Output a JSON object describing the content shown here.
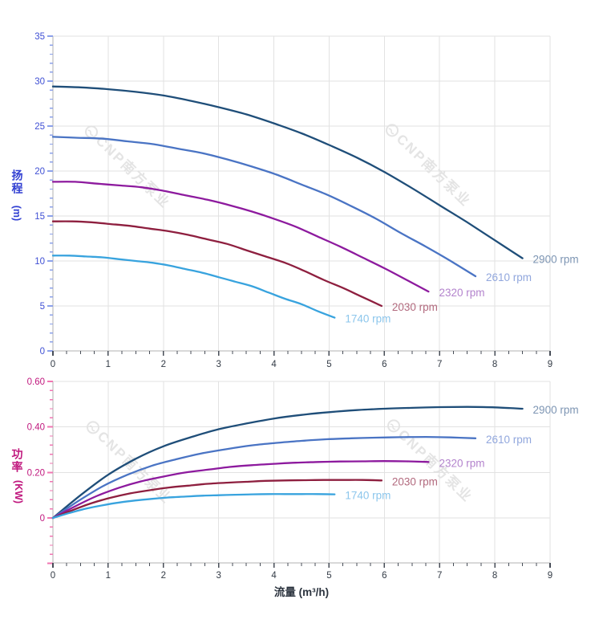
{
  "x_title": "流量 (m³/h)",
  "watermark": {
    "text": "CNP南方泵业",
    "color": "#e4e4e4",
    "logo": "cnp-circle-logo"
  },
  "palette": {
    "gridline": "#e2e2e2",
    "spine": "#d8d8d8",
    "x_tick": "#474d57",
    "x_tick_label": "#333b46",
    "head_axis": "#4050d4",
    "head_tick": "#8ba0ea",
    "power_axis": "#c0187e",
    "power_tick": "#f075b2"
  },
  "chart_data": [
    {
      "type": "line",
      "name": "head-vs-flow",
      "ylabel": "扬程",
      "ylabel_unit": "(m)",
      "xlabel": "流量 (m³/h)",
      "xlim": [
        0,
        9
      ],
      "ylim": [
        0,
        35
      ],
      "grid": true,
      "legend_position": "end-of-curve",
      "x_ticks": [
        0,
        1,
        2,
        3,
        4,
        5,
        6,
        7,
        8,
        9
      ],
      "x_tick_labels": [
        "0",
        "1",
        "2",
        "3",
        "4",
        "5",
        "6",
        "7",
        "8",
        "9"
      ],
      "x_minor_step": 0.25,
      "y_ticks": [
        0,
        5,
        10,
        15,
        20,
        25,
        30,
        35
      ],
      "y_tick_labels": [
        "0",
        "5",
        "10",
        "15",
        "20",
        "25",
        "30",
        "35"
      ],
      "y_minor_step": 1,
      "axis_label_color": "#4050d4",
      "tick_color": "#8ba0ea",
      "series": [
        {
          "name": "2900 rpm",
          "color": "#1f4e79",
          "label_color": "#7d95b3",
          "x": [
            0,
            0.5,
            1,
            1.5,
            2,
            2.5,
            3,
            3.5,
            4,
            4.5,
            5,
            5.5,
            6,
            6.5,
            7,
            7.5,
            8,
            8.5
          ],
          "y": [
            29.4,
            29.3,
            29.1,
            28.8,
            28.4,
            27.8,
            27.1,
            26.3,
            25.3,
            24.2,
            22.9,
            21.5,
            19.9,
            18.1,
            16.2,
            14.3,
            12.3,
            10.3
          ]
        },
        {
          "name": "2610 rpm",
          "color": "#4a74c4",
          "label_color": "#91a7dd",
          "x": [
            0,
            0.45,
            0.9,
            1.35,
            1.8,
            2.25,
            2.7,
            3.15,
            3.6,
            4.05,
            4.5,
            4.95,
            5.4,
            5.85,
            6.3,
            6.75,
            7.2,
            7.65
          ],
          "y": [
            23.8,
            23.7,
            23.6,
            23.3,
            23.0,
            22.5,
            22.0,
            21.3,
            20.5,
            19.6,
            18.5,
            17.4,
            16.1,
            14.7,
            13.1,
            11.6,
            10.0,
            8.3
          ]
        },
        {
          "name": "2320 rpm",
          "color": "#8d1a9e",
          "label_color": "#b383cd",
          "x": [
            0,
            0.4,
            0.8,
            1.2,
            1.6,
            2,
            2.4,
            2.8,
            3.2,
            3.6,
            4,
            4.4,
            4.8,
            5.2,
            5.6,
            6,
            6.4,
            6.8
          ],
          "y": [
            18.8,
            18.8,
            18.6,
            18.4,
            18.2,
            17.8,
            17.3,
            16.8,
            16.2,
            15.5,
            14.7,
            13.8,
            12.7,
            11.6,
            10.4,
            9.2,
            7.9,
            6.6
          ]
        },
        {
          "name": "2030 rpm",
          "color": "#8e1f3f",
          "label_color": "#b26a7e",
          "x": [
            0,
            0.35,
            0.7,
            1.05,
            1.4,
            1.75,
            2.1,
            2.45,
            2.8,
            3.15,
            3.5,
            3.85,
            4.2,
            4.55,
            4.9,
            5.25,
            5.6,
            5.95
          ],
          "y": [
            14.4,
            14.4,
            14.3,
            14.1,
            13.9,
            13.6,
            13.3,
            12.9,
            12.4,
            11.9,
            11.2,
            10.5,
            9.8,
            8.9,
            7.9,
            7.0,
            6.0,
            5.0
          ]
        },
        {
          "name": "1740 rpm",
          "color": "#38a3de",
          "label_color": "#8cc6ec",
          "x": [
            0,
            0.3,
            0.6,
            0.9,
            1.2,
            1.5,
            1.8,
            2.1,
            2.4,
            2.7,
            3,
            3.3,
            3.6,
            3.9,
            4.2,
            4.5,
            4.8,
            5.1
          ],
          "y": [
            10.6,
            10.6,
            10.5,
            10.4,
            10.2,
            10.0,
            9.8,
            9.5,
            9.1,
            8.7,
            8.2,
            7.7,
            7.2,
            6.5,
            5.8,
            5.2,
            4.4,
            3.7
          ]
        }
      ]
    },
    {
      "type": "line",
      "name": "power-vs-flow",
      "ylabel": "功率",
      "ylabel_unit": "(KW)",
      "xlabel": "流量 (m³/h)",
      "xlim": [
        0,
        9
      ],
      "ylim": [
        -0.2,
        0.6
      ],
      "grid": true,
      "legend_position": "end-of-curve",
      "x_ticks": [
        0,
        1,
        2,
        3,
        4,
        5,
        6,
        7,
        8,
        9
      ],
      "x_tick_labels": [
        "0",
        "1",
        "2",
        "3",
        "4",
        "5",
        "6",
        "7",
        "8",
        "9"
      ],
      "x_minor_step": 0.25,
      "y_ticks": [
        -0.2,
        0,
        0.2,
        0.4,
        0.6
      ],
      "y_tick_labels": [
        "",
        "0",
        "0.20",
        "0.40",
        "0.60"
      ],
      "y_minor_step": 0.04,
      "axis_label_color": "#c0187e",
      "tick_color": "#f075b2",
      "series": [
        {
          "name": "2900 rpm",
          "color": "#1f4e79",
          "label_color": "#7d95b3",
          "x": [
            0,
            0.5,
            1,
            1.5,
            2,
            2.5,
            3,
            3.5,
            4,
            4.5,
            5,
            5.5,
            6,
            6.5,
            7,
            7.5,
            8,
            8.5
          ],
          "y": [
            0,
            0.1,
            0.19,
            0.26,
            0.315,
            0.355,
            0.39,
            0.415,
            0.437,
            0.453,
            0.465,
            0.474,
            0.48,
            0.484,
            0.487,
            0.488,
            0.486,
            0.48
          ]
        },
        {
          "name": "2610 rpm",
          "color": "#4a74c4",
          "label_color": "#91a7dd",
          "x": [
            0,
            0.45,
            0.9,
            1.35,
            1.8,
            2.25,
            2.7,
            3.15,
            3.6,
            4.05,
            4.5,
            4.95,
            5.4,
            5.85,
            6.3,
            6.75,
            7.2,
            7.65
          ],
          "y": [
            0,
            0.073,
            0.139,
            0.19,
            0.23,
            0.259,
            0.284,
            0.303,
            0.319,
            0.33,
            0.339,
            0.346,
            0.35,
            0.353,
            0.355,
            0.356,
            0.354,
            0.35
          ]
        },
        {
          "name": "2320 rpm",
          "color": "#8d1a9e",
          "label_color": "#b383cd",
          "x": [
            0,
            0.4,
            0.8,
            1.2,
            1.6,
            2,
            2.4,
            2.8,
            3.2,
            3.6,
            4,
            4.4,
            4.8,
            5.2,
            5.6,
            6,
            6.4,
            6.8
          ],
          "y": [
            0,
            0.051,
            0.097,
            0.133,
            0.161,
            0.182,
            0.2,
            0.212,
            0.224,
            0.232,
            0.238,
            0.243,
            0.246,
            0.248,
            0.249,
            0.25,
            0.249,
            0.246
          ]
        },
        {
          "name": "2030 rpm",
          "color": "#8e1f3f",
          "label_color": "#b26a7e",
          "x": [
            0,
            0.35,
            0.7,
            1.05,
            1.4,
            1.75,
            2.1,
            2.45,
            2.8,
            3.15,
            3.5,
            3.85,
            4.2,
            4.55,
            4.9,
            5.25,
            5.6,
            5.95
          ],
          "y": [
            0,
            0.034,
            0.065,
            0.089,
            0.108,
            0.122,
            0.134,
            0.142,
            0.15,
            0.155,
            0.159,
            0.163,
            0.165,
            0.166,
            0.167,
            0.167,
            0.167,
            0.165
          ]
        },
        {
          "name": "1740 rpm",
          "color": "#38a3de",
          "label_color": "#8cc6ec",
          "x": [
            0,
            0.3,
            0.6,
            0.9,
            1.2,
            1.5,
            1.8,
            2.1,
            2.4,
            2.7,
            3,
            3.3,
            3.6,
            3.9,
            4.2,
            4.5,
            4.8,
            5.1
          ],
          "y": [
            0,
            0.022,
            0.041,
            0.056,
            0.068,
            0.077,
            0.084,
            0.09,
            0.094,
            0.098,
            0.1,
            0.102,
            0.104,
            0.105,
            0.105,
            0.105,
            0.105,
            0.104
          ]
        }
      ]
    }
  ]
}
